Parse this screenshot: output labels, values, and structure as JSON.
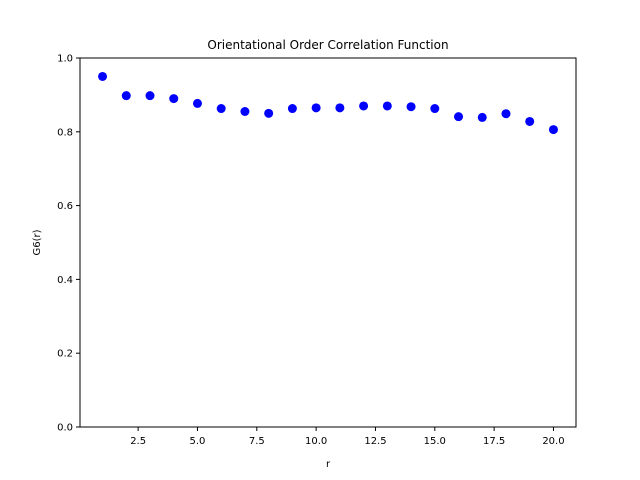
{
  "chart_data": {
    "type": "scatter",
    "title": "Orientational Order Correlation Function",
    "xlabel": "r",
    "ylabel": "G6(r)",
    "x": [
      1,
      2,
      3,
      4,
      5,
      6,
      7,
      8,
      9,
      10,
      11,
      12,
      13,
      14,
      15,
      16,
      17,
      18,
      19,
      20
    ],
    "y": [
      0.95,
      0.898,
      0.898,
      0.89,
      0.877,
      0.863,
      0.855,
      0.85,
      0.863,
      0.865,
      0.865,
      0.87,
      0.87,
      0.868,
      0.863,
      0.841,
      0.839,
      0.849,
      0.828,
      0.806
    ],
    "xlim": [
      0.05,
      20.95
    ],
    "ylim": [
      0,
      1
    ],
    "xticks": [
      2.5,
      5.0,
      7.5,
      10.0,
      12.5,
      15.0,
      17.5,
      20.0
    ],
    "xtick_labels": [
      "2.5",
      "5.0",
      "7.5",
      "10.0",
      "12.5",
      "15.0",
      "17.5",
      "20.0"
    ],
    "yticks": [
      0.0,
      0.2,
      0.4,
      0.6,
      0.8,
      1.0
    ],
    "ytick_labels": [
      "0.0",
      "0.2",
      "0.4",
      "0.6",
      "0.8",
      "1.0"
    ],
    "marker_color": "#0000ff",
    "grid": false,
    "legend": false
  }
}
